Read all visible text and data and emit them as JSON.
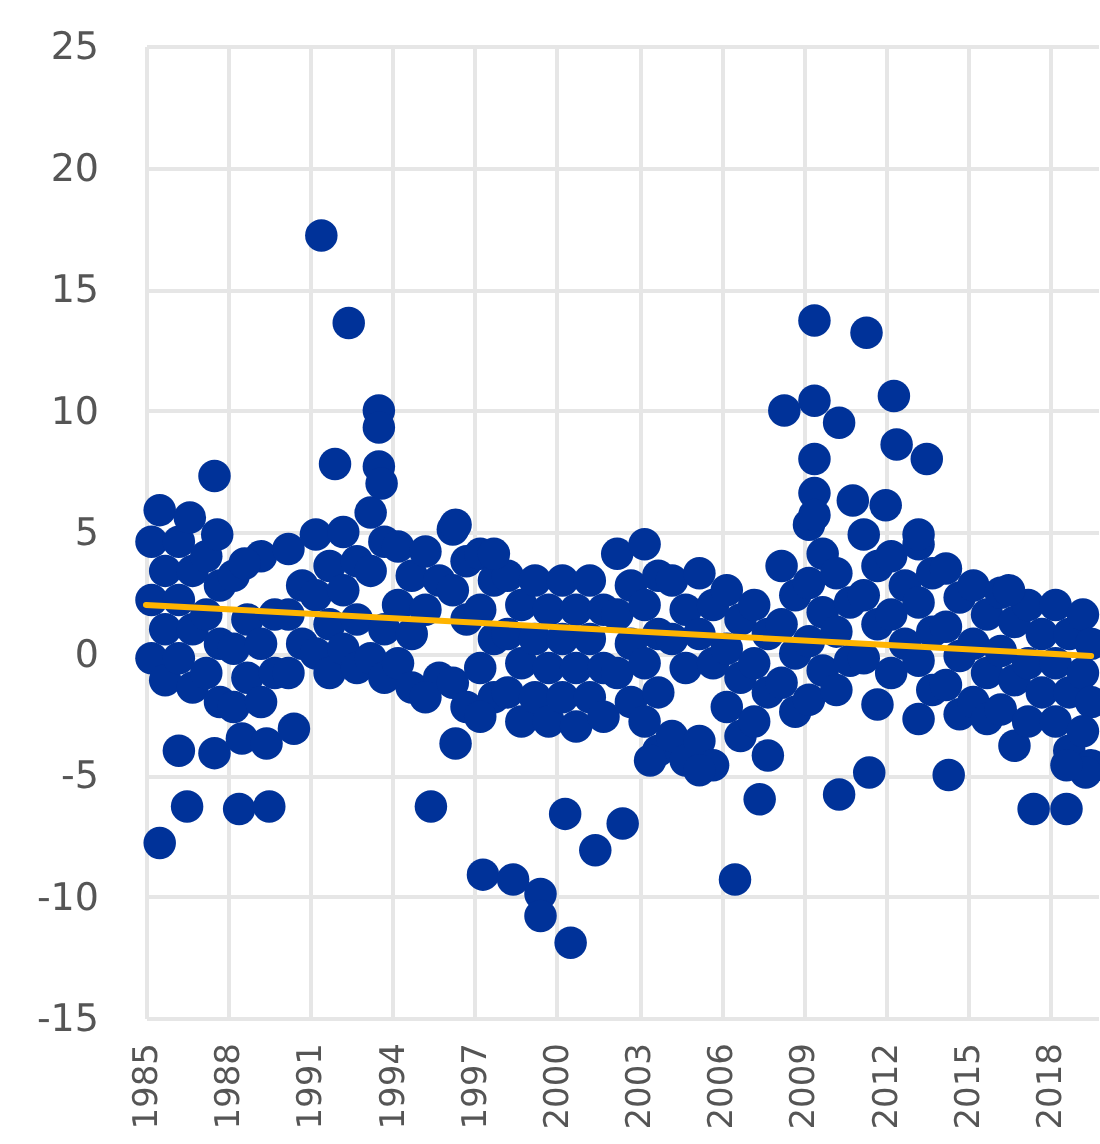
{
  "chart_data": {
    "type": "scatter",
    "xlim": [
      1985,
      2019.75
    ],
    "xticks": [
      1985,
      1988,
      1991,
      1994,
      1997,
      2000,
      2003,
      2006,
      2009,
      2012,
      2015,
      2018
    ],
    "ylim": [
      -15,
      25
    ],
    "yticks": [
      -15,
      -10,
      -5,
      0,
      5,
      10,
      15,
      20,
      25
    ],
    "grid": true,
    "series": [
      {
        "color": "#003299",
        "marker": "circle",
        "x": [
          1985.2,
          1985.7,
          1985.2,
          1985.7,
          1985.2,
          1985.7,
          1986.2,
          1986.7,
          1986.2,
          1986.7,
          1986.2,
          1986.7,
          1987.2,
          1987.7,
          1987.2,
          1987.7,
          1987.2,
          1987.7,
          1988.2,
          1988.7,
          1988.2,
          1988.7,
          1988.2,
          1989.2,
          1989.7,
          1989.2,
          1989.7,
          1989.2,
          1990.2,
          1990.7,
          1990.2,
          1990.7,
          1990.2,
          1991.2,
          1991.7,
          1991.2,
          1991.7,
          1991.2,
          1991.7,
          1992.2,
          1992.7,
          1992.2,
          1992.7,
          1992.2,
          1992.7,
          1993.2,
          1993.7,
          1993.2,
          1993.7,
          1993.2,
          1993.7,
          1994.2,
          1994.7,
          1994.2,
          1994.7,
          1994.2,
          1994.7,
          1995.2,
          1995.7,
          1995.2,
          1995.7,
          1995.2,
          1996.2,
          1996.7,
          1996.2,
          1996.7,
          1996.2,
          1996.7,
          1997.2,
          1997.7,
          1997.2,
          1997.7,
          1997.2,
          1997.7,
          1997.2,
          1998.2,
          1998.7,
          1998.2,
          1998.7,
          1998.2,
          1998.7,
          1999.2,
          1999.7,
          1999.2,
          1999.7,
          1999.2,
          1999.7,
          2000.2,
          2000.7,
          2000.2,
          2000.7,
          2000.2,
          2000.7,
          2001.2,
          2001.7,
          2001.2,
          2001.7,
          2001.2,
          2001.7,
          2002.2,
          2002.7,
          2002.2,
          2002.7,
          2002.2,
          2002.7,
          2003.2,
          2003.7,
          2003.2,
          2003.7,
          2003.2,
          2003.7,
          2003.2,
          2003.7,
          2004.2,
          2004.7,
          2004.2,
          2004.7,
          2004.2,
          2004.7,
          2005.2,
          2005.7,
          2005.2,
          2005.7,
          2005.2,
          2005.7,
          2006.2,
          2006.7,
          2006.2,
          2006.7,
          2006.2,
          2006.7,
          2007.2,
          2007.7,
          2007.2,
          2007.7,
          2007.2,
          2007.7,
          2008.2,
          2008.7,
          2008.2,
          2008.7,
          2008.2,
          2008.7,
          2009.2,
          2009.7,
          2009.2,
          2009.7,
          2009.2,
          2009.7,
          2009.2,
          2010.2,
          2010.7,
          2010.2,
          2010.7,
          2010.2,
          2011.2,
          2011.7,
          2011.2,
          2011.7,
          2011.2,
          2011.7,
          2012.2,
          2012.7,
          2012.2,
          2012.7,
          2012.2,
          2013.2,
          2013.7,
          2013.2,
          2013.7,
          2013.2,
          2013.7,
          2013.2,
          2014.2,
          2014.7,
          2014.2,
          2014.7,
          2014.2,
          2014.7,
          2015.2,
          2015.7,
          2015.2,
          2015.7,
          2015.2,
          2015.7,
          2016.2,
          2016.7,
          2016.2,
          2016.7,
          2016.2,
          2016.7,
          2017.2,
          2017.7,
          2017.2,
          2017.7,
          2017.2,
          2018.2,
          2018.7,
          2018.2,
          2018.7,
          2018.2,
          2018.7,
          2019.2,
          2019.5,
          2019.2,
          2019.5,
          2019.2,
          2019.5,
          1991.4,
          1992.4,
          1993.5,
          1993.5,
          1991.9,
          1993.5,
          1993.6,
          1987.5,
          1985.5,
          1986.6,
          1987.6,
          1988.6,
          1996.3,
          1997.7,
          2009.4,
          2011.3,
          2008.3,
          2009.4,
          2010.3,
          2012.3,
          2012.4,
          2013.5,
          2009.4,
          2009.4,
          2009.4,
          2010.8,
          2012.0,
          2013.2,
          2016.5,
          1985.5,
          1986.5,
          1988.4,
          1989.5,
          1995.4,
          1996.3,
          1986.2,
          1987.5,
          1988.5,
          1989.4,
          1990.4,
          1997.3,
          1998.4,
          1999.4,
          1999.4,
          2000.5,
          2000.3,
          2002.4,
          2001.4,
          2006.5,
          2007.4,
          2010.3,
          2011.4,
          2014.3,
          2017.4,
          2018.6,
          2019.3,
          2003.4,
          2005.2,
          2018.6
        ],
        "values": [
          4.6,
          3.4,
          2.2,
          1.0,
          -0.2,
          -1.1,
          4.6,
          3.4,
          2.2,
          1.0,
          -0.2,
          -1.4,
          4.0,
          2.8,
          1.6,
          0.4,
          -0.8,
          -2.0,
          3.2,
          1.4,
          0.2,
          -1.0,
          -2.2,
          4.0,
          1.6,
          0.4,
          -0.8,
          -2.0,
          4.3,
          2.8,
          1.6,
          0.4,
          -0.8,
          4.9,
          3.6,
          2.4,
          1.2,
          0.0,
          -0.8,
          5.0,
          3.8,
          2.6,
          1.4,
          0.2,
          -0.6,
          5.8,
          4.6,
          3.4,
          1.0,
          -0.2,
          -1.0,
          4.4,
          3.2,
          2.0,
          0.8,
          -0.4,
          -1.4,
          4.2,
          3.0,
          1.8,
          -1.0,
          -1.8,
          5.1,
          3.8,
          2.6,
          1.4,
          -1.2,
          -2.2,
          4.1,
          3.0,
          1.8,
          0.6,
          -0.6,
          -1.8,
          -2.6,
          3.2,
          2.0,
          0.8,
          -0.4,
          -1.6,
          -2.8,
          3.0,
          1.8,
          0.6,
          -0.6,
          -1.8,
          -2.8,
          3.0,
          1.8,
          0.6,
          -0.6,
          -1.8,
          -3.0,
          3.0,
          1.8,
          0.6,
          -0.6,
          -1.8,
          -2.6,
          4.1,
          2.8,
          1.6,
          0.4,
          -0.8,
          -2.0,
          4.5,
          3.2,
          2.0,
          0.8,
          -0.4,
          -1.6,
          -2.8,
          -4.0,
          3.0,
          1.8,
          0.6,
          -0.6,
          -3.4,
          -4.4,
          3.3,
          2.0,
          0.8,
          -0.4,
          -3.6,
          -4.6,
          2.6,
          1.4,
          0.2,
          -1.0,
          -2.2,
          -3.4,
          2.0,
          0.8,
          -0.4,
          -1.6,
          -2.8,
          -4.2,
          3.6,
          2.4,
          1.2,
          0.0,
          -1.2,
          -2.4,
          5.3,
          4.1,
          2.9,
          1.7,
          0.5,
          -0.7,
          -1.9,
          3.3,
          2.1,
          0.9,
          -0.3,
          -1.5,
          4.9,
          3.6,
          2.4,
          1.2,
          -0.2,
          -2.1,
          4.0,
          2.8,
          1.6,
          0.4,
          -0.8,
          4.5,
          3.3,
          2.1,
          0.9,
          -0.3,
          -1.5,
          -2.7,
          3.5,
          2.3,
          1.1,
          -0.1,
          -1.3,
          -2.5,
          2.8,
          1.6,
          0.4,
          -0.8,
          -2.0,
          -2.7,
          2.5,
          1.3,
          0.1,
          -1.1,
          -2.3,
          -3.8,
          2.0,
          0.8,
          -0.4,
          -1.6,
          -2.8,
          2.0,
          0.8,
          -0.4,
          -1.6,
          -2.8,
          -4.0,
          1.6,
          0.4,
          -0.8,
          -2.0,
          -3.2,
          -4.6,
          17.2,
          13.6,
          10.0,
          9.3,
          7.8,
          7.7,
          7.0,
          7.3,
          5.9,
          5.6,
          4.9,
          3.7,
          5.3,
          4.1,
          13.7,
          13.2,
          10.0,
          10.4,
          9.5,
          10.6,
          8.6,
          8.0,
          8.0,
          6.6,
          5.7,
          6.3,
          6.1,
          4.9,
          2.6,
          -7.8,
          -6.3,
          -6.4,
          -6.3,
          -6.3,
          -3.7,
          -4.0,
          -4.1,
          -3.5,
          -3.7,
          -3.1,
          -9.1,
          -9.3,
          -9.9,
          -10.8,
          -11.9,
          -6.6,
          -7.0,
          -8.1,
          -9.3,
          -6.0,
          -5.8,
          -4.9,
          -5.0,
          -6.4,
          -6.4,
          -4.9,
          -4.4,
          -4.8,
          -4.6
        ]
      },
      {
        "type": "line",
        "color": "#ffb400",
        "x": [
          1985,
          2019.5
        ],
        "values": [
          2.0,
          -0.1
        ]
      }
    ]
  }
}
